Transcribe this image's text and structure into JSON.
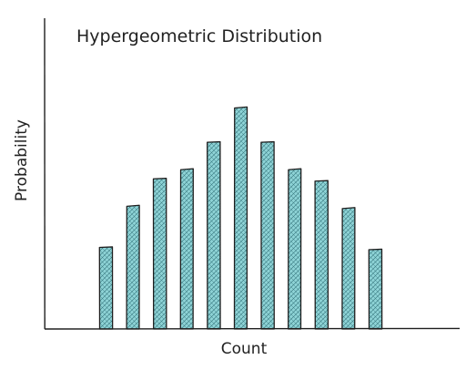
{
  "chart_data": {
    "type": "bar",
    "title": "Hypergeometric Distribution",
    "xlabel": "Count",
    "ylabel": "Probability",
    "values": [
      0.36,
      0.54,
      0.66,
      0.7,
      0.82,
      0.97,
      0.82,
      0.7,
      0.65,
      0.53,
      0.35
    ],
    "ylim": [
      0,
      1.2
    ],
    "grid": false,
    "x_ticks_shown": false,
    "y_ticks_shown": false,
    "bar_fill": "#8ed3d6",
    "bar_stroke": "#1e1e1e",
    "axis_color": "#1e1e1e"
  }
}
